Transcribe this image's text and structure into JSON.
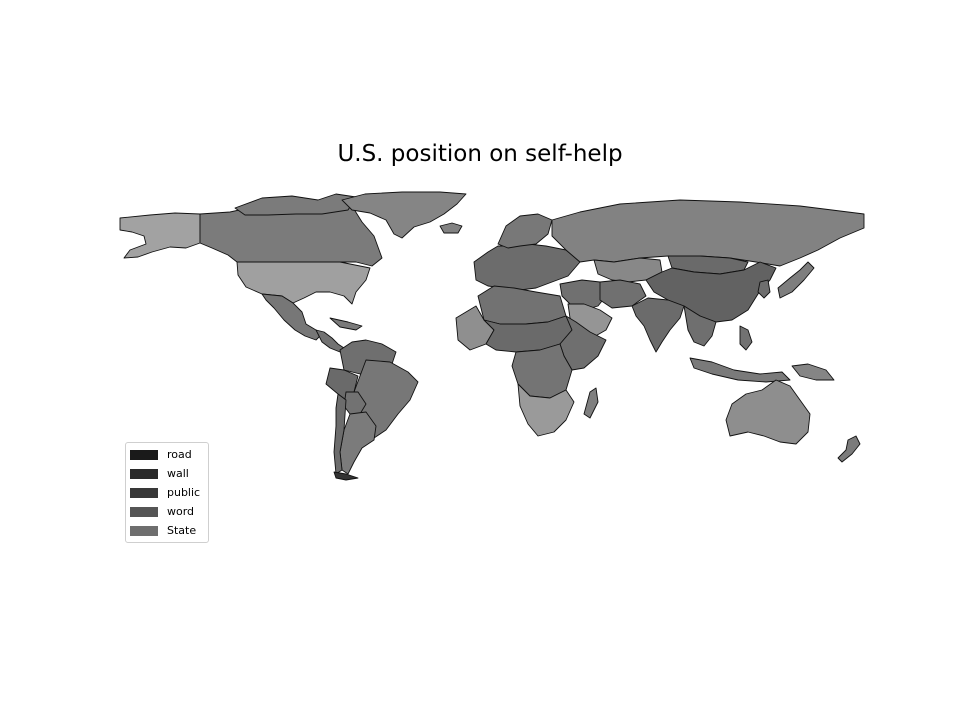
{
  "title": "U.S. position on self-help",
  "legend": {
    "items": [
      {
        "label": "road",
        "color": "#1a1a1a"
      },
      {
        "label": "wall",
        "color": "#2a2a2a"
      },
      {
        "label": "public",
        "color": "#383838"
      },
      {
        "label": "word",
        "color": "#555555"
      },
      {
        "label": "State",
        "color": "#6e6e6e"
      }
    ]
  },
  "map": {
    "type": "choropleth",
    "projection": "equirectangular",
    "background": "#ffffff",
    "border_color": "#111111",
    "regions": [
      {
        "name": "Alaska",
        "fill": "#a2a2a2"
      },
      {
        "name": "Canada",
        "fill": "#7b7b7b"
      },
      {
        "name": "Greenland",
        "fill": "#858585"
      },
      {
        "name": "United States",
        "fill": "#a0a0a0"
      },
      {
        "name": "Mexico",
        "fill": "#777777"
      },
      {
        "name": "Central America",
        "fill": "#727272"
      },
      {
        "name": "Caribbean",
        "fill": "#7a7a7a"
      },
      {
        "name": "Colombia and Venezuela",
        "fill": "#6f6f6f"
      },
      {
        "name": "Brazil",
        "fill": "#777777"
      },
      {
        "name": "Peru",
        "fill": "#6a6a6a"
      },
      {
        "name": "Bolivia",
        "fill": "#727272"
      },
      {
        "name": "Argentina",
        "fill": "#7b7b7b"
      },
      {
        "name": "Chile",
        "fill": "#6c6c6c"
      },
      {
        "name": "Tierra del Fuego",
        "fill": "#333333"
      },
      {
        "name": "Iceland",
        "fill": "#828282"
      },
      {
        "name": "Europe",
        "fill": "#6c6c6c"
      },
      {
        "name": "Scandinavia",
        "fill": "#787878"
      },
      {
        "name": "Russia",
        "fill": "#828282"
      },
      {
        "name": "Kazakhstan",
        "fill": "#888888"
      },
      {
        "name": "Mongolia",
        "fill": "#6a6a6a"
      },
      {
        "name": "China",
        "fill": "#626262"
      },
      {
        "name": "Middle East",
        "fill": "#707070"
      },
      {
        "name": "Saudi Arabia",
        "fill": "#959595"
      },
      {
        "name": "Iran",
        "fill": "#707070"
      },
      {
        "name": "India",
        "fill": "#6b6b6b"
      },
      {
        "name": "Southeast Asia",
        "fill": "#6f6f6f"
      },
      {
        "name": "Korea",
        "fill": "#6e6e6e"
      },
      {
        "name": "Japan",
        "fill": "#7e7e7e"
      },
      {
        "name": "Philippines",
        "fill": "#727272"
      },
      {
        "name": "Indonesia",
        "fill": "#7a7a7a"
      },
      {
        "name": "New Guinea",
        "fill": "#858585"
      },
      {
        "name": "Australia",
        "fill": "#8e8e8e"
      },
      {
        "name": "New Zealand",
        "fill": "#7b7b7b"
      },
      {
        "name": "North Africa",
        "fill": "#727272"
      },
      {
        "name": "West Africa",
        "fill": "#8f8f8f"
      },
      {
        "name": "Sahel",
        "fill": "#6a6a6a"
      },
      {
        "name": "Horn of Africa",
        "fill": "#6f6f6f"
      },
      {
        "name": "Central Africa",
        "fill": "#747474"
      },
      {
        "name": "Southern Africa",
        "fill": "#9a9a9a"
      },
      {
        "name": "Madagascar",
        "fill": "#7f7f7f"
      }
    ]
  }
}
